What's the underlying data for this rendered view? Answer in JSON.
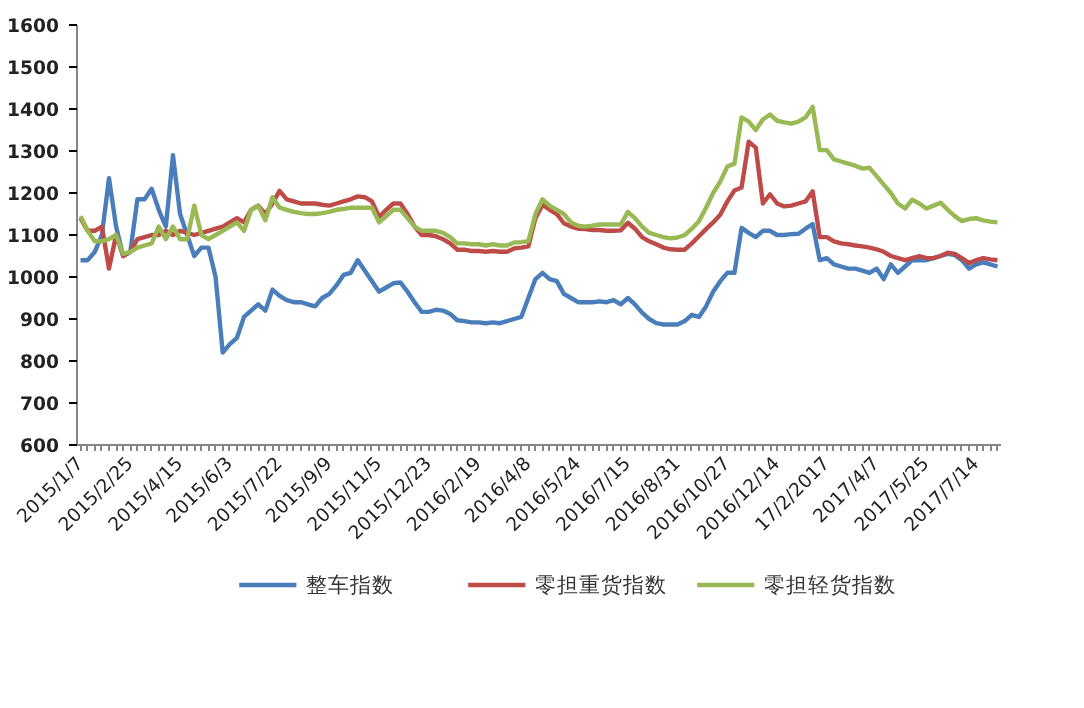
{
  "chart_data": {
    "type": "line",
    "categories": [
      "2015/1/7",
      null,
      null,
      null,
      null,
      null,
      null,
      "2015/2/25",
      null,
      null,
      null,
      null,
      null,
      null,
      "2015/4/15",
      null,
      null,
      null,
      null,
      null,
      null,
      "2015/6/3",
      null,
      null,
      null,
      null,
      null,
      null,
      "2015/7/22",
      null,
      null,
      null,
      null,
      null,
      null,
      "2015/9/9",
      null,
      null,
      null,
      null,
      null,
      null,
      "2015/11/5",
      null,
      null,
      null,
      null,
      null,
      null,
      "2015/12/23",
      null,
      null,
      null,
      null,
      null,
      null,
      "2016/2/19",
      null,
      null,
      null,
      null,
      null,
      null,
      "2016/4/8",
      null,
      null,
      null,
      null,
      null,
      null,
      "2016/5/24",
      null,
      null,
      null,
      null,
      null,
      null,
      "2016/7/15",
      null,
      null,
      null,
      null,
      null,
      null,
      "2016/8/31",
      null,
      null,
      null,
      null,
      null,
      null,
      "2016/10/27",
      null,
      null,
      null,
      null,
      null,
      null,
      "2016/12/14",
      null,
      null,
      null,
      null,
      null,
      null,
      "17/2/2017",
      null,
      null,
      null,
      null,
      null,
      null,
      "2017/4/7",
      null,
      null,
      null,
      null,
      null,
      null,
      "2017/5/25",
      null,
      null,
      null,
      null,
      null,
      null,
      "2017/7/14",
      null,
      null,
      null
    ],
    "series": [
      {
        "name": "整车指数",
        "color": "#4a7ebb",
        "values": [
          1040,
          1040,
          1060,
          1100,
          1235,
          1120,
          1050,
          1060,
          1185,
          1185,
          1210,
          1160,
          1120,
          1290,
          1150,
          1100,
          1050,
          1070,
          1070,
          1000,
          820,
          840,
          855,
          905,
          920,
          935,
          920,
          970,
          955,
          945,
          940,
          940,
          935,
          930,
          950,
          960,
          980,
          1005,
          1010,
          1040,
          1015,
          990,
          965,
          975,
          985,
          987,
          965,
          940,
          917,
          917,
          922,
          920,
          912,
          897,
          895,
          892,
          892,
          890,
          892,
          890,
          895,
          900,
          905,
          950,
          995,
          1010,
          995,
          990,
          960,
          950,
          940,
          940,
          940,
          942,
          940,
          945,
          935,
          950,
          935,
          915,
          900,
          890,
          887,
          887,
          887,
          895,
          910,
          905,
          930,
          965,
          990,
          1010,
          1010,
          1117,
          1105,
          1095,
          1110,
          1110,
          1100,
          1100,
          1102,
          1103,
          1115,
          1126,
          1040,
          1045,
          1030,
          1025,
          1020,
          1020,
          1015,
          1010,
          1020,
          995,
          1030,
          1010,
          1025,
          1040,
          1040,
          1040,
          1045,
          1050,
          1055,
          1052,
          1040,
          1020,
          1030,
          1035,
          1030,
          1025
        ]
      },
      {
        "name": "零担重货指数",
        "color": "#be4b48",
        "values": [
          1140,
          1110,
          1110,
          1120,
          1020,
          1100,
          1050,
          1060,
          1090,
          1095,
          1100,
          1100,
          1110,
          1100,
          1110,
          1105,
          1100,
          1105,
          1110,
          1115,
          1120,
          1130,
          1140,
          1130,
          1160,
          1170,
          1150,
          1175,
          1205,
          1185,
          1180,
          1175,
          1175,
          1175,
          1172,
          1170,
          1175,
          1180,
          1185,
          1192,
          1190,
          1180,
          1143,
          1160,
          1175,
          1175,
          1150,
          1120,
          1100,
          1100,
          1097,
          1090,
          1080,
          1065,
          1065,
          1062,
          1062,
          1060,
          1062,
          1060,
          1060,
          1068,
          1070,
          1073,
          1140,
          1172,
          1160,
          1150,
          1128,
          1120,
          1115,
          1114,
          1112,
          1112,
          1110,
          1110,
          1111,
          1129,
          1115,
          1095,
          1085,
          1078,
          1070,
          1066,
          1065,
          1065,
          1080,
          1097,
          1114,
          1130,
          1148,
          1180,
          1206,
          1213,
          1322,
          1308,
          1175,
          1197,
          1175,
          1168,
          1170,
          1175,
          1180,
          1204,
          1095,
          1095,
          1085,
          1080,
          1078,
          1075,
          1073,
          1070,
          1066,
          1060,
          1050,
          1045,
          1040,
          1045,
          1050,
          1045,
          1045,
          1050,
          1058,
          1055,
          1045,
          1033,
          1040,
          1045,
          1042,
          1040
        ]
      },
      {
        "name": "零担轻货指数",
        "color": "#98b954",
        "values": [
          1145,
          1110,
          1085,
          1085,
          1090,
          1100,
          1055,
          1060,
          1070,
          1075,
          1080,
          1120,
          1090,
          1120,
          1090,
          1090,
          1170,
          1100,
          1090,
          1100,
          1110,
          1120,
          1130,
          1110,
          1160,
          1170,
          1135,
          1190,
          1165,
          1160,
          1155,
          1152,
          1150,
          1150,
          1152,
          1155,
          1160,
          1162,
          1165,
          1165,
          1165,
          1165,
          1130,
          1145,
          1160,
          1160,
          1140,
          1120,
          1110,
          1110,
          1110,
          1105,
          1095,
          1080,
          1080,
          1078,
          1078,
          1075,
          1078,
          1075,
          1075,
          1082,
          1083,
          1085,
          1150,
          1185,
          1170,
          1160,
          1150,
          1130,
          1122,
          1120,
          1122,
          1125,
          1125,
          1125,
          1125,
          1155,
          1140,
          1120,
          1105,
          1100,
          1095,
          1092,
          1094,
          1100,
          1115,
          1133,
          1165,
          1200,
          1227,
          1263,
          1270,
          1380,
          1370,
          1350,
          1375,
          1387,
          1372,
          1368,
          1365,
          1370,
          1380,
          1405,
          1302,
          1302,
          1280,
          1275,
          1270,
          1265,
          1258,
          1260,
          1240,
          1220,
          1200,
          1175,
          1163,
          1184,
          1175,
          1163,
          1170,
          1177,
          1160,
          1145,
          1133,
          1138,
          1140,
          1135,
          1132,
          1130
        ]
      }
    ],
    "ylim": [
      600,
      1600
    ],
    "yticks": [
      600,
      700,
      800,
      900,
      1000,
      1100,
      1200,
      1300,
      1400,
      1500,
      1600
    ],
    "grid": false,
    "legend": "bottom",
    "marker": "none",
    "line_style": "solid"
  }
}
